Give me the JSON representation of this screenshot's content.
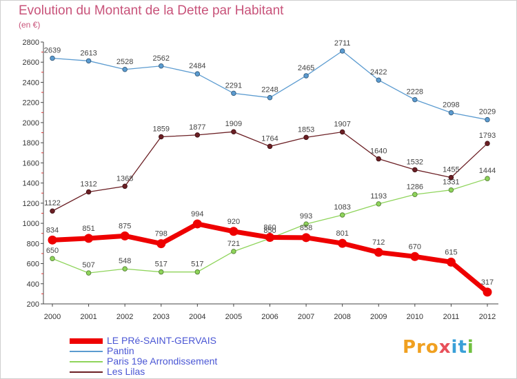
{
  "title": "Evolution du Montant de la Dette par Habitant",
  "unit_label": "(en €)",
  "brand": {
    "part1": "Pro",
    "part2": "x",
    "part3": "it",
    "part4": "i"
  },
  "chart_data": {
    "type": "line",
    "x": [
      2000,
      2001,
      2002,
      2003,
      2004,
      2005,
      2006,
      2007,
      2008,
      2009,
      2010,
      2011,
      2012
    ],
    "ylim": [
      200,
      2800
    ],
    "yticks": [
      200,
      400,
      600,
      800,
      1000,
      1200,
      1400,
      1600,
      1800,
      2000,
      2200,
      2400,
      2600,
      2800
    ],
    "grid": false,
    "legend_position": "bottom-left",
    "series": [
      {
        "name": "Pantin",
        "color": "#5b9bd0",
        "values": [
          2639,
          2613,
          2528,
          2562,
          2484,
          2291,
          2248,
          2465,
          2711,
          2422,
          2228,
          2098,
          2029
        ],
        "emphasis": false
      },
      {
        "name": "Les Lilas",
        "color": "#6b1f24",
        "values": [
          1122,
          1312,
          1368,
          1859,
          1877,
          1909,
          1764,
          1853,
          1907,
          1640,
          1532,
          1455,
          1793
        ],
        "emphasis": false
      },
      {
        "name": "Paris 19e  Arrondissement",
        "color": "#8ed45a",
        "values": [
          650,
          507,
          548,
          517,
          517,
          721,
          850,
          993,
          1083,
          1193,
          1286,
          1331,
          1444
        ],
        "emphasis": false
      },
      {
        "name": "LE PRé-SAINT-GERVAIS",
        "color": "#ee0000",
        "values": [
          834,
          851,
          875,
          798,
          994,
          920,
          860,
          858,
          801,
          712,
          670,
          615,
          317
        ],
        "emphasis": true
      }
    ],
    "legend_order": [
      "LE PRé-SAINT-GERVAIS",
      "Pantin",
      "Paris 19e  Arrondissement",
      "Les Lilas"
    ]
  }
}
